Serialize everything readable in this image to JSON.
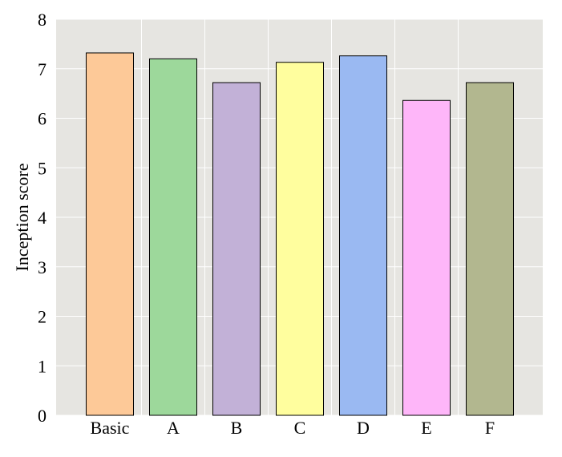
{
  "chart_data": {
    "type": "bar",
    "title": "",
    "xlabel": "",
    "ylabel": "Inception score",
    "categories": [
      "Basic",
      "A",
      "B",
      "C",
      "D",
      "E",
      "F"
    ],
    "values": [
      7.32,
      7.2,
      6.72,
      7.13,
      7.26,
      6.36,
      6.72
    ],
    "ylim": [
      0,
      8
    ],
    "yticks": [
      0,
      1,
      2,
      3,
      4,
      5,
      6,
      7,
      8
    ],
    "grid": true,
    "legend": "none",
    "colors": [
      "#fdc998",
      "#9dd89b",
      "#c2b1d7",
      "#fffe9e",
      "#9ab9f2",
      "#feb6f9",
      "#b2b78f"
    ],
    "background_color": "#e6e5e1",
    "grid_color": "#ffffff"
  }
}
